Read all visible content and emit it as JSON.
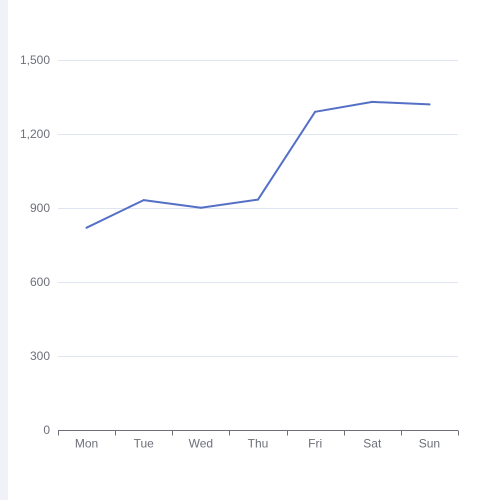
{
  "chart_data": {
    "type": "line",
    "title": "",
    "xlabel": "",
    "ylabel": "",
    "categories": [
      "Mon",
      "Tue",
      "Wed",
      "Thu",
      "Fri",
      "Sat",
      "Sun"
    ],
    "series": [
      {
        "values": [
          820,
          932,
          901,
          934,
          1290,
          1330,
          1320
        ],
        "color": "#5470c6"
      }
    ],
    "ylim": [
      0,
      1500
    ],
    "yticks": [
      0,
      300,
      600,
      900,
      1200,
      1500
    ],
    "ytick_labels": [
      "0",
      "300",
      "600",
      "900",
      "1,200",
      "1,500"
    ],
    "grid": true,
    "legend": "none",
    "colors": {
      "line": "#5470c6",
      "grid": "#e0e6f1",
      "axis": "#6e7079",
      "label": "#6e7079",
      "side_strip": "#f1f2f7"
    }
  }
}
